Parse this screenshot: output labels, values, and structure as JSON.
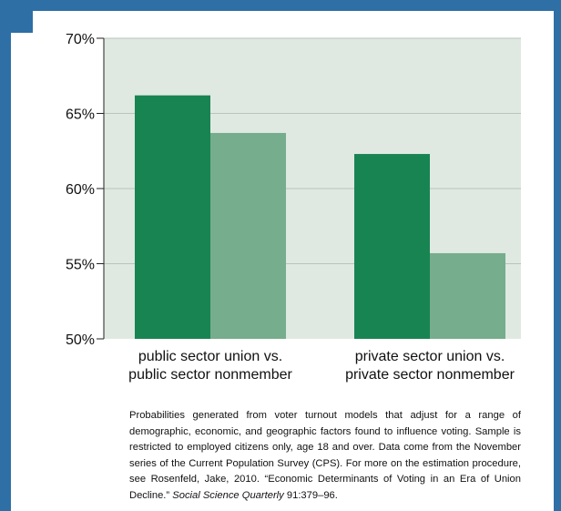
{
  "chart_data": {
    "type": "bar",
    "categories": [
      [
        "public sector union vs.",
        "public sector nonmember"
      ],
      [
        "private sector union vs.",
        "private sector nonmember"
      ]
    ],
    "series": [
      {
        "values": [
          66.2,
          62.3
        ],
        "color": "#188452"
      },
      {
        "values": [
          63.7,
          55.7
        ],
        "color": "#76ad8d"
      }
    ],
    "ylim": [
      50,
      70
    ],
    "yticks": [
      50,
      55,
      60,
      65,
      70
    ],
    "ytick_labels": [
      "50%",
      "55%",
      "60%",
      "65%",
      "70%"
    ],
    "grid": true,
    "plot_background": "#dfe9e1"
  },
  "note": {
    "text": "Probabilities generated from voter turnout models that adjust for a range of demographic, economic, and geographic factors found to influence voting. Sample is restricted to employed citizens only, age 18 and over. Data come from the November series of the Current Population Survey (CPS). For more on the estimation procedure, see Rosenfeld, Jake, 2010. “Economic Determinants of Voting in an Era of Union Decline.” ",
    "journal": "Social Science Quarterly",
    "citation_end": " 91:379–96."
  }
}
